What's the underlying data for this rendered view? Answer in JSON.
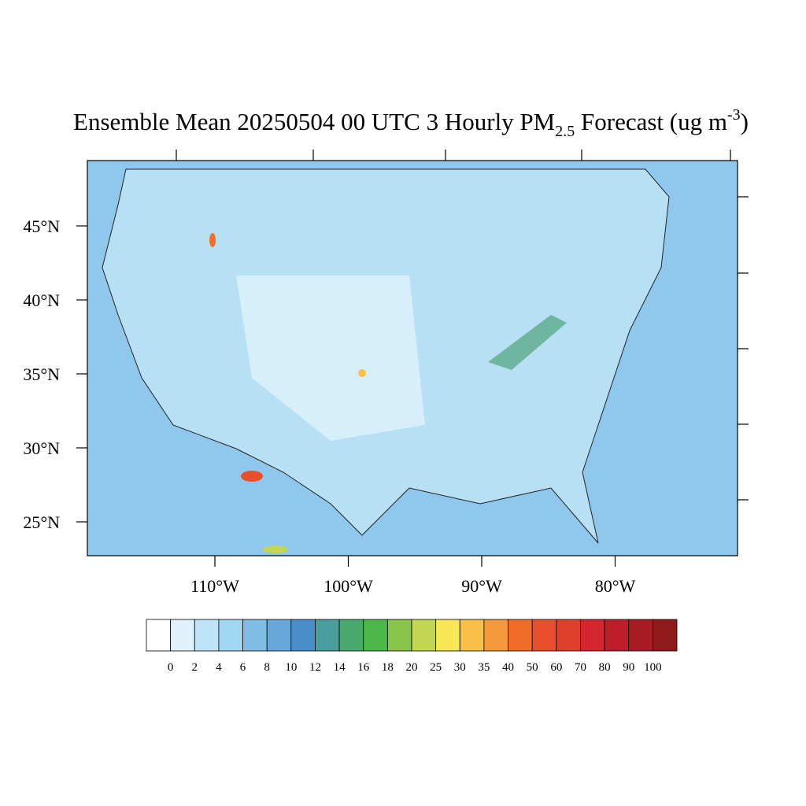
{
  "map": {
    "title": {
      "main": "Ensemble Mean 20250504 00 UTC 3 Hourly PM",
      "sub": "2.5",
      "rest": " Forecast (ug m",
      "sup": "-3",
      "end": ")"
    },
    "lat_labels": [
      {
        "value": 45,
        "label": "45°N"
      },
      {
        "value": 40,
        "label": "40°N"
      },
      {
        "value": 35,
        "label": "35°N"
      },
      {
        "value": 30,
        "label": "30°N"
      },
      {
        "value": 25,
        "label": "25°N"
      }
    ],
    "lon_labels": [
      {
        "value": -110,
        "label": "110°W"
      },
      {
        "value": -100,
        "label": "100°W"
      },
      {
        "value": -90,
        "label": "90°W"
      },
      {
        "value": -80,
        "label": "80°W"
      }
    ],
    "colorbar": {
      "levels": [
        0,
        2,
        4,
        6,
        8,
        10,
        12,
        14,
        16,
        18,
        20,
        25,
        30,
        35,
        40,
        50,
        60,
        70,
        80,
        90,
        100
      ],
      "colors": [
        "#ffffff",
        "#dff2fc",
        "#bfe4f7",
        "#9fd6f2",
        "#82bde6",
        "#6aa7d9",
        "#4a8dcb",
        "#4a9e9e",
        "#4aa96c",
        "#4ab748",
        "#88c54a",
        "#c2d653",
        "#f7e756",
        "#f6c146",
        "#f49a3c",
        "#f26c2a",
        "#e8502b",
        "#dd3f2b",
        "#d42530",
        "#bc1f2a",
        "#a81c24",
        "#8f1a1c"
      ]
    }
  }
}
